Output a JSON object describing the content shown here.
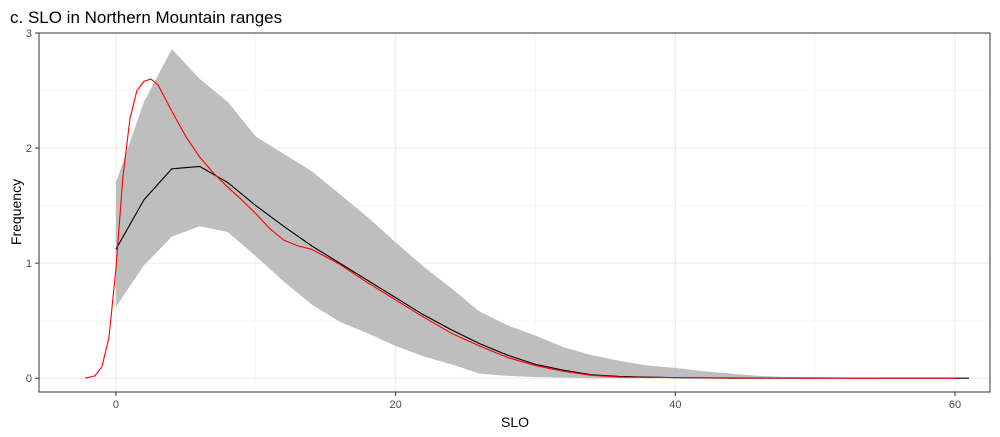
{
  "chart_data": {
    "type": "area",
    "title": "c. SLO in Northern Mountain ranges",
    "xlabel": "SLO",
    "ylabel": "Frequency",
    "xlim": [
      -5.5,
      62.5
    ],
    "ylim": [
      -0.12,
      3.0
    ],
    "x_ticks": [
      0,
      20,
      40,
      60
    ],
    "x_minor_ticks": [
      10,
      30,
      50
    ],
    "y_ticks": [
      0,
      1,
      2,
      3
    ],
    "y_minor_ticks": [
      0.5,
      1.5,
      2.5
    ],
    "grid": true,
    "theme": "bw",
    "colors": {
      "band": "#bebebe",
      "mean_line": "#000000",
      "observed_line": "#ff0000",
      "grid_major": "#ebebeb",
      "grid_minor": "#f5f5f5",
      "panel_border": "#333333"
    },
    "series": [
      {
        "kind": "ribbon",
        "color": "#bebebe",
        "x": [
          0,
          2,
          4,
          6,
          8,
          10,
          12,
          14,
          16,
          18,
          20,
          22,
          24,
          26,
          28,
          30,
          32,
          34,
          36,
          38,
          40,
          42,
          44,
          46,
          48,
          50,
          52,
          54,
          56,
          58,
          60,
          61
        ],
        "lower": [
          0.62,
          0.98,
          1.23,
          1.32,
          1.27,
          1.06,
          0.84,
          0.64,
          0.49,
          0.39,
          0.28,
          0.19,
          0.12,
          0.04,
          0.02,
          0.01,
          0.005,
          0,
          0,
          0,
          0,
          0,
          0,
          0,
          0,
          0,
          0,
          0,
          0,
          0,
          0,
          0
        ],
        "upper": [
          1.7,
          2.4,
          2.86,
          2.6,
          2.4,
          2.1,
          1.95,
          1.8,
          1.6,
          1.4,
          1.18,
          0.97,
          0.78,
          0.58,
          0.46,
          0.37,
          0.27,
          0.2,
          0.15,
          0.11,
          0.09,
          0.06,
          0.04,
          0.02,
          0.01,
          0.01,
          0.005,
          0,
          0,
          0,
          0,
          0
        ]
      },
      {
        "kind": "line",
        "color": "#000000",
        "x": [
          0,
          2,
          4,
          6,
          8,
          10,
          12,
          14,
          16,
          18,
          20,
          22,
          24,
          26,
          28,
          30,
          32,
          34,
          36,
          38,
          40,
          44,
          48,
          52,
          56,
          61
        ],
        "y": [
          1.12,
          1.55,
          1.82,
          1.84,
          1.7,
          1.5,
          1.32,
          1.15,
          1.0,
          0.85,
          0.7,
          0.55,
          0.42,
          0.3,
          0.2,
          0.12,
          0.07,
          0.03,
          0.015,
          0.01,
          0.005,
          0,
          0,
          0,
          0,
          0
        ]
      },
      {
        "kind": "line",
        "color": "#ff0000",
        "x": [
          -2.2,
          -1.5,
          -1,
          -0.5,
          0,
          0.5,
          1,
          1.5,
          2,
          2.5,
          3,
          4,
          5,
          6,
          7,
          8,
          9,
          10,
          11,
          12,
          13,
          14,
          16,
          18,
          20,
          22,
          24,
          26,
          28,
          30,
          32,
          34,
          36,
          40,
          45,
          50,
          55,
          60
        ],
        "y": [
          0.0,
          0.02,
          0.1,
          0.35,
          0.95,
          1.75,
          2.25,
          2.5,
          2.58,
          2.6,
          2.55,
          2.32,
          2.1,
          1.92,
          1.78,
          1.66,
          1.55,
          1.43,
          1.3,
          1.2,
          1.15,
          1.12,
          0.99,
          0.83,
          0.68,
          0.53,
          0.39,
          0.28,
          0.18,
          0.11,
          0.06,
          0.025,
          0.01,
          0.005,
          0.002,
          0.001,
          0,
          0
        ]
      }
    ]
  }
}
